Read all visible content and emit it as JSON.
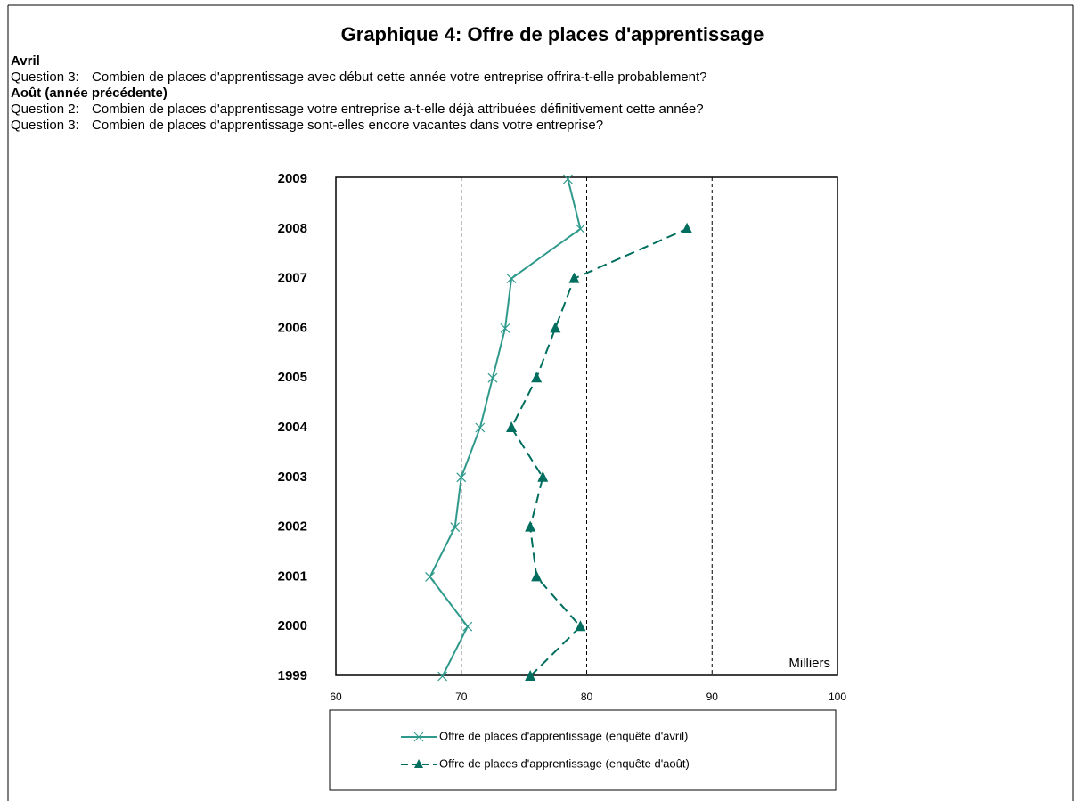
{
  "chart_data": {
    "type": "line",
    "orientation": "horizontal",
    "title": "Graphique 4: Offre de places d'apprentissage",
    "notes": [
      {
        "heading": "Avril",
        "questions": [
          {
            "label": "Question 3:",
            "text": "Combien de places d'apprentissage avec début cette année votre entreprise offrira-t-elle probablement?"
          }
        ]
      },
      {
        "heading": "Août (année précédente)",
        "questions": [
          {
            "label": "Question 2:",
            "text": "Combien de places d'apprentissage votre entreprise a-t-elle déjà attribuées définitivement cette année?"
          },
          {
            "label": "Question 3:",
            "text": "Combien de places d'apprentissage sont-elles encore vacantes dans votre entreprise?"
          }
        ]
      }
    ],
    "unit_label": "Milliers",
    "categories": [
      "1999",
      "2000",
      "2001",
      "2002",
      "2003",
      "2004",
      "2005",
      "2006",
      "2007",
      "2008",
      "2009"
    ],
    "series": [
      {
        "name": "Offre de places d'apprentissage (enquête d'avril)",
        "color": "#2f9a8c",
        "marker": "x",
        "dashed": false,
        "values": [
          68.5,
          70.5,
          67.5,
          69.5,
          70,
          71.5,
          72.5,
          73.5,
          74,
          79.5,
          78.5
        ]
      },
      {
        "name": "Offre de places d'apprentissage (enquête d'août)",
        "color": "#006e5e",
        "marker": "triangle",
        "dashed": true,
        "values": [
          75.5,
          79.5,
          76,
          75.5,
          76.5,
          74,
          76,
          77.5,
          79,
          88,
          null
        ]
      }
    ],
    "xlim": [
      60,
      100
    ],
    "xticks": [
      60,
      70,
      80,
      90,
      100
    ],
    "grid": true
  }
}
